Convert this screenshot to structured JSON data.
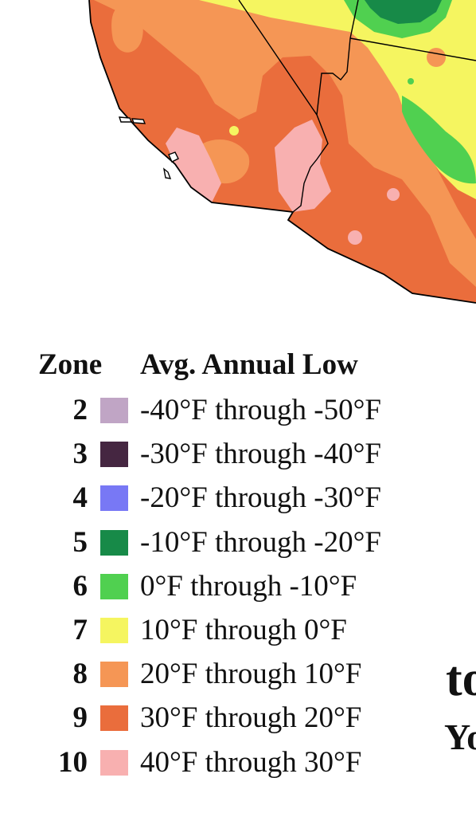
{
  "legend": {
    "zone_header": "Zone",
    "low_header": "Avg. Annual Low",
    "rows": [
      {
        "zone": "2",
        "range": "-40°F through -50°F",
        "color": "#c0a5c5"
      },
      {
        "zone": "3",
        "range": "-30°F through -40°F",
        "color": "#452641"
      },
      {
        "zone": "4",
        "range": "-20°F through -30°F",
        "color": "#7878f5"
      },
      {
        "zone": "5",
        "range": "-10°F through -20°F",
        "color": "#178a48"
      },
      {
        "zone": "6",
        "range": "0°F through -10°F",
        "color": "#50d050"
      },
      {
        "zone": "7",
        "range": "10°F through 0°F",
        "color": "#f5f560"
      },
      {
        "zone": "8",
        "range": "20°F through 10°F",
        "color": "#f59655"
      },
      {
        "zone": "9",
        "range": "30°F through 20°F",
        "color": "#ea6d3c"
      },
      {
        "zone": "10",
        "range": "40°F through 30°F",
        "color": "#f8b0b0"
      }
    ]
  },
  "cut_off_text": {
    "large": "to",
    "small": "Yo"
  }
}
